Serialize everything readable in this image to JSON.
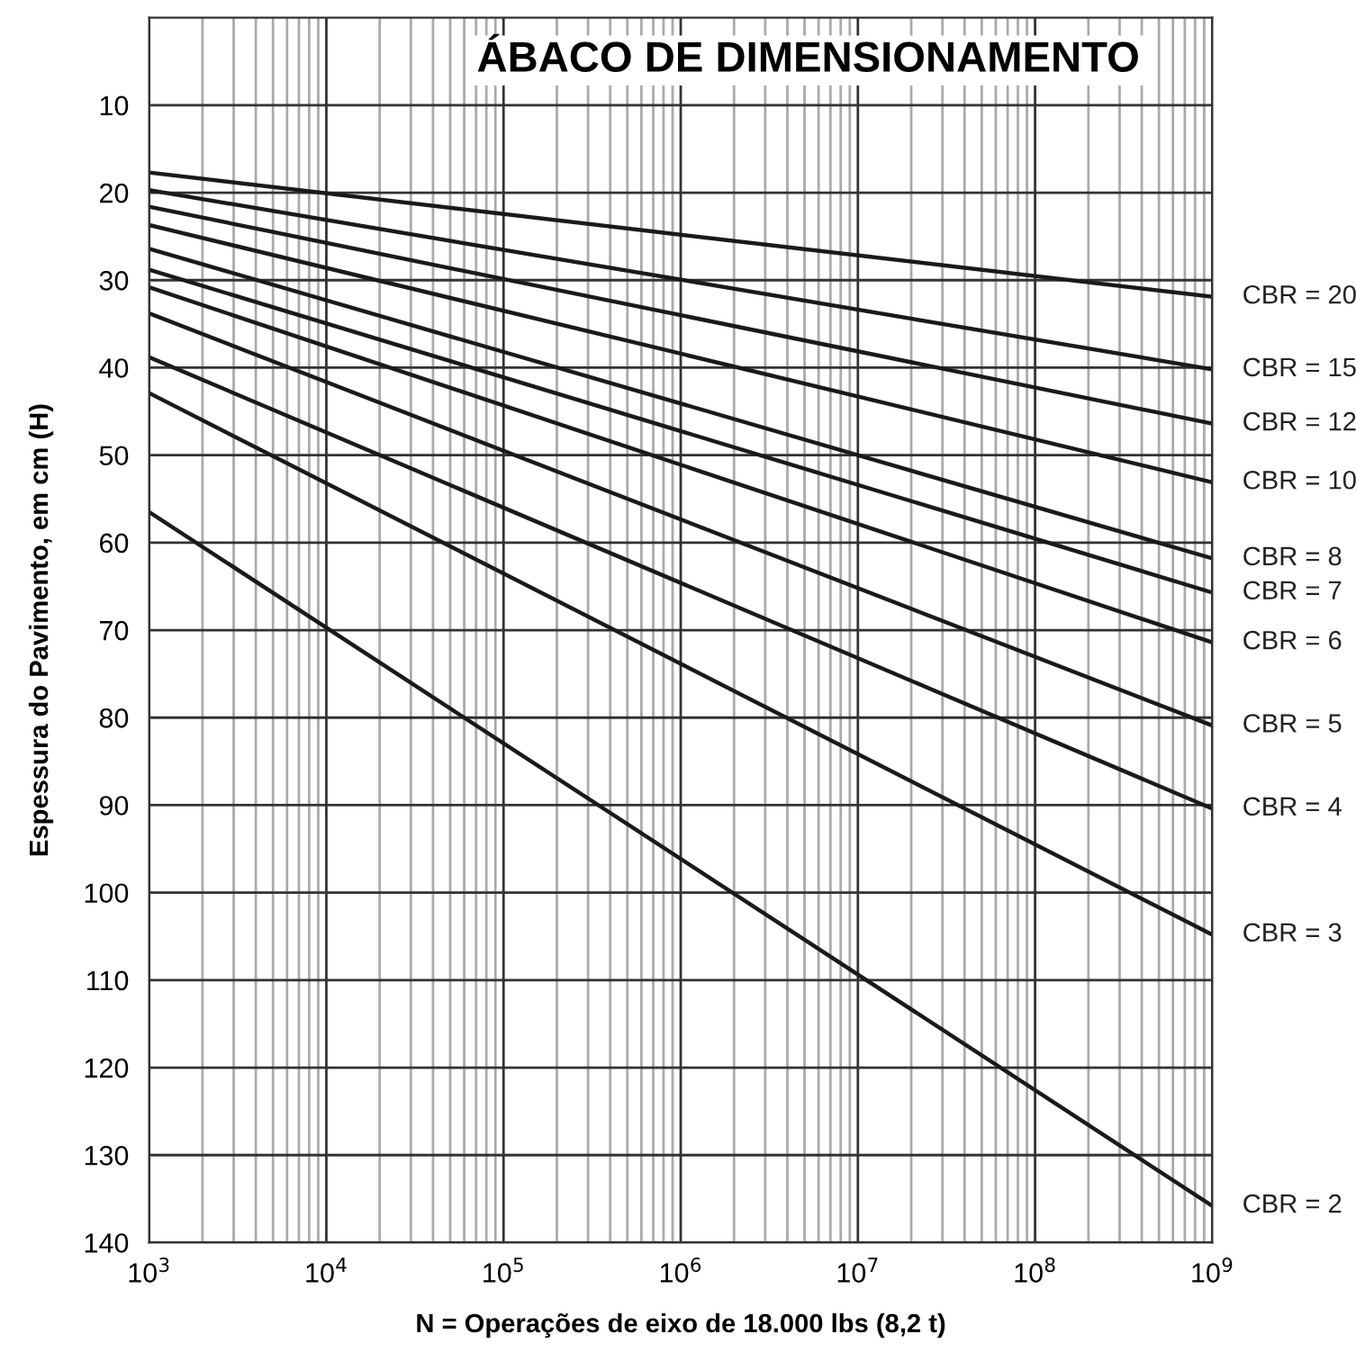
{
  "chart_data": {
    "type": "line",
    "title": "ÁBACO DE DIMENSIONAMENTO",
    "xlabel": "N = Operações de eixo de 18.000 lbs (8,2 t)",
    "ylabel": "Espessura do Pavimento, em cm (H)",
    "log": "x",
    "grid": true,
    "marker": "none",
    "line_style": "solid",
    "xlim": [
      1000,
      1000000000
    ],
    "xticks": [
      {
        "value": 1000,
        "label": "10$^{3}$"
      },
      {
        "value": 10000,
        "label": "10$^{4}$"
      },
      {
        "value": 100000,
        "label": "10$^{5}$"
      },
      {
        "value": 1000000,
        "label": "10$^{6}$"
      },
      {
        "value": 10000000,
        "label": "10$^{7}$"
      },
      {
        "value": 100000000,
        "label": "10$^{8}$"
      },
      {
        "value": 1000000000,
        "label": "10$^{9}$"
      }
    ],
    "ylim": [
      140,
      0
    ],
    "yticks": [
      10,
      20,
      30,
      40,
      50,
      60,
      70,
      80,
      90,
      100,
      110,
      120,
      130,
      140
    ],
    "x": [
      1000,
      1000000000
    ],
    "series": [
      {
        "name": "CBR = 20",
        "color": "#1a1a1a",
        "values": [
          17.7,
          31.9
        ]
      },
      {
        "name": "CBR = 15",
        "color": "#1a1a1a",
        "values": [
          19.7,
          40.2
        ]
      },
      {
        "name": "CBR = 12",
        "color": "#1a1a1a",
        "values": [
          21.6,
          46.4
        ]
      },
      {
        "name": "CBR = 10",
        "color": "#1a1a1a",
        "values": [
          23.7,
          53.1
        ]
      },
      {
        "name": "CBR = 8",
        "color": "#1a1a1a",
        "values": [
          26.4,
          61.8
        ]
      },
      {
        "name": "CBR = 7",
        "color": "#1a1a1a",
        "values": [
          28.8,
          65.7
        ]
      },
      {
        "name": "CBR = 6",
        "color": "#1a1a1a",
        "values": [
          30.8,
          71.4
        ]
      },
      {
        "name": "CBR = 5",
        "color": "#1a1a1a",
        "values": [
          33.8,
          80.9
        ]
      },
      {
        "name": "CBR = 4",
        "color": "#1a1a1a",
        "values": [
          38.8,
          90.4
        ]
      },
      {
        "name": "CBR = 3",
        "color": "#1a1a1a",
        "values": [
          42.9,
          104.8
        ]
      },
      {
        "name": "CBR = 2",
        "color": "#1a1a1a",
        "values": [
          56.5,
          135.8
        ]
      }
    ]
  }
}
